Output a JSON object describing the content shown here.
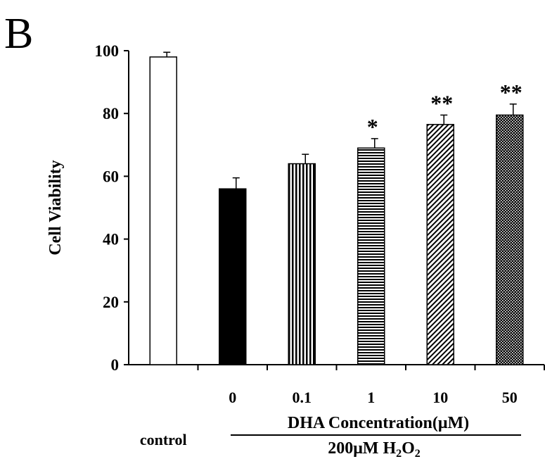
{
  "panel_label": "B",
  "colors": {
    "axis": "#000000",
    "background": "#ffffff"
  },
  "chart_data": {
    "type": "bar",
    "ylabel": "Cell Viability",
    "ylim": [
      0,
      100
    ],
    "yticks": [
      0,
      20,
      40,
      60,
      80,
      100
    ],
    "grid": false,
    "legend": "none",
    "group_label_top": "DHA Concentration(μM)",
    "group_label_bottom_parts": [
      "200μM H",
      "2",
      "O",
      "2"
    ],
    "categories": [
      "control",
      "0",
      "0.1",
      "1",
      "10",
      "50"
    ],
    "values": [
      98,
      56,
      64,
      69,
      76.5,
      79.5
    ],
    "errors": [
      1.5,
      3.5,
      3,
      3,
      3,
      3.5
    ],
    "significance": [
      "",
      "",
      "",
      "*",
      "**",
      "**"
    ],
    "fills": [
      "empty",
      "solid-black",
      "vertical-lines",
      "horizontal-lines",
      "diagonal-lines",
      "dots"
    ]
  }
}
